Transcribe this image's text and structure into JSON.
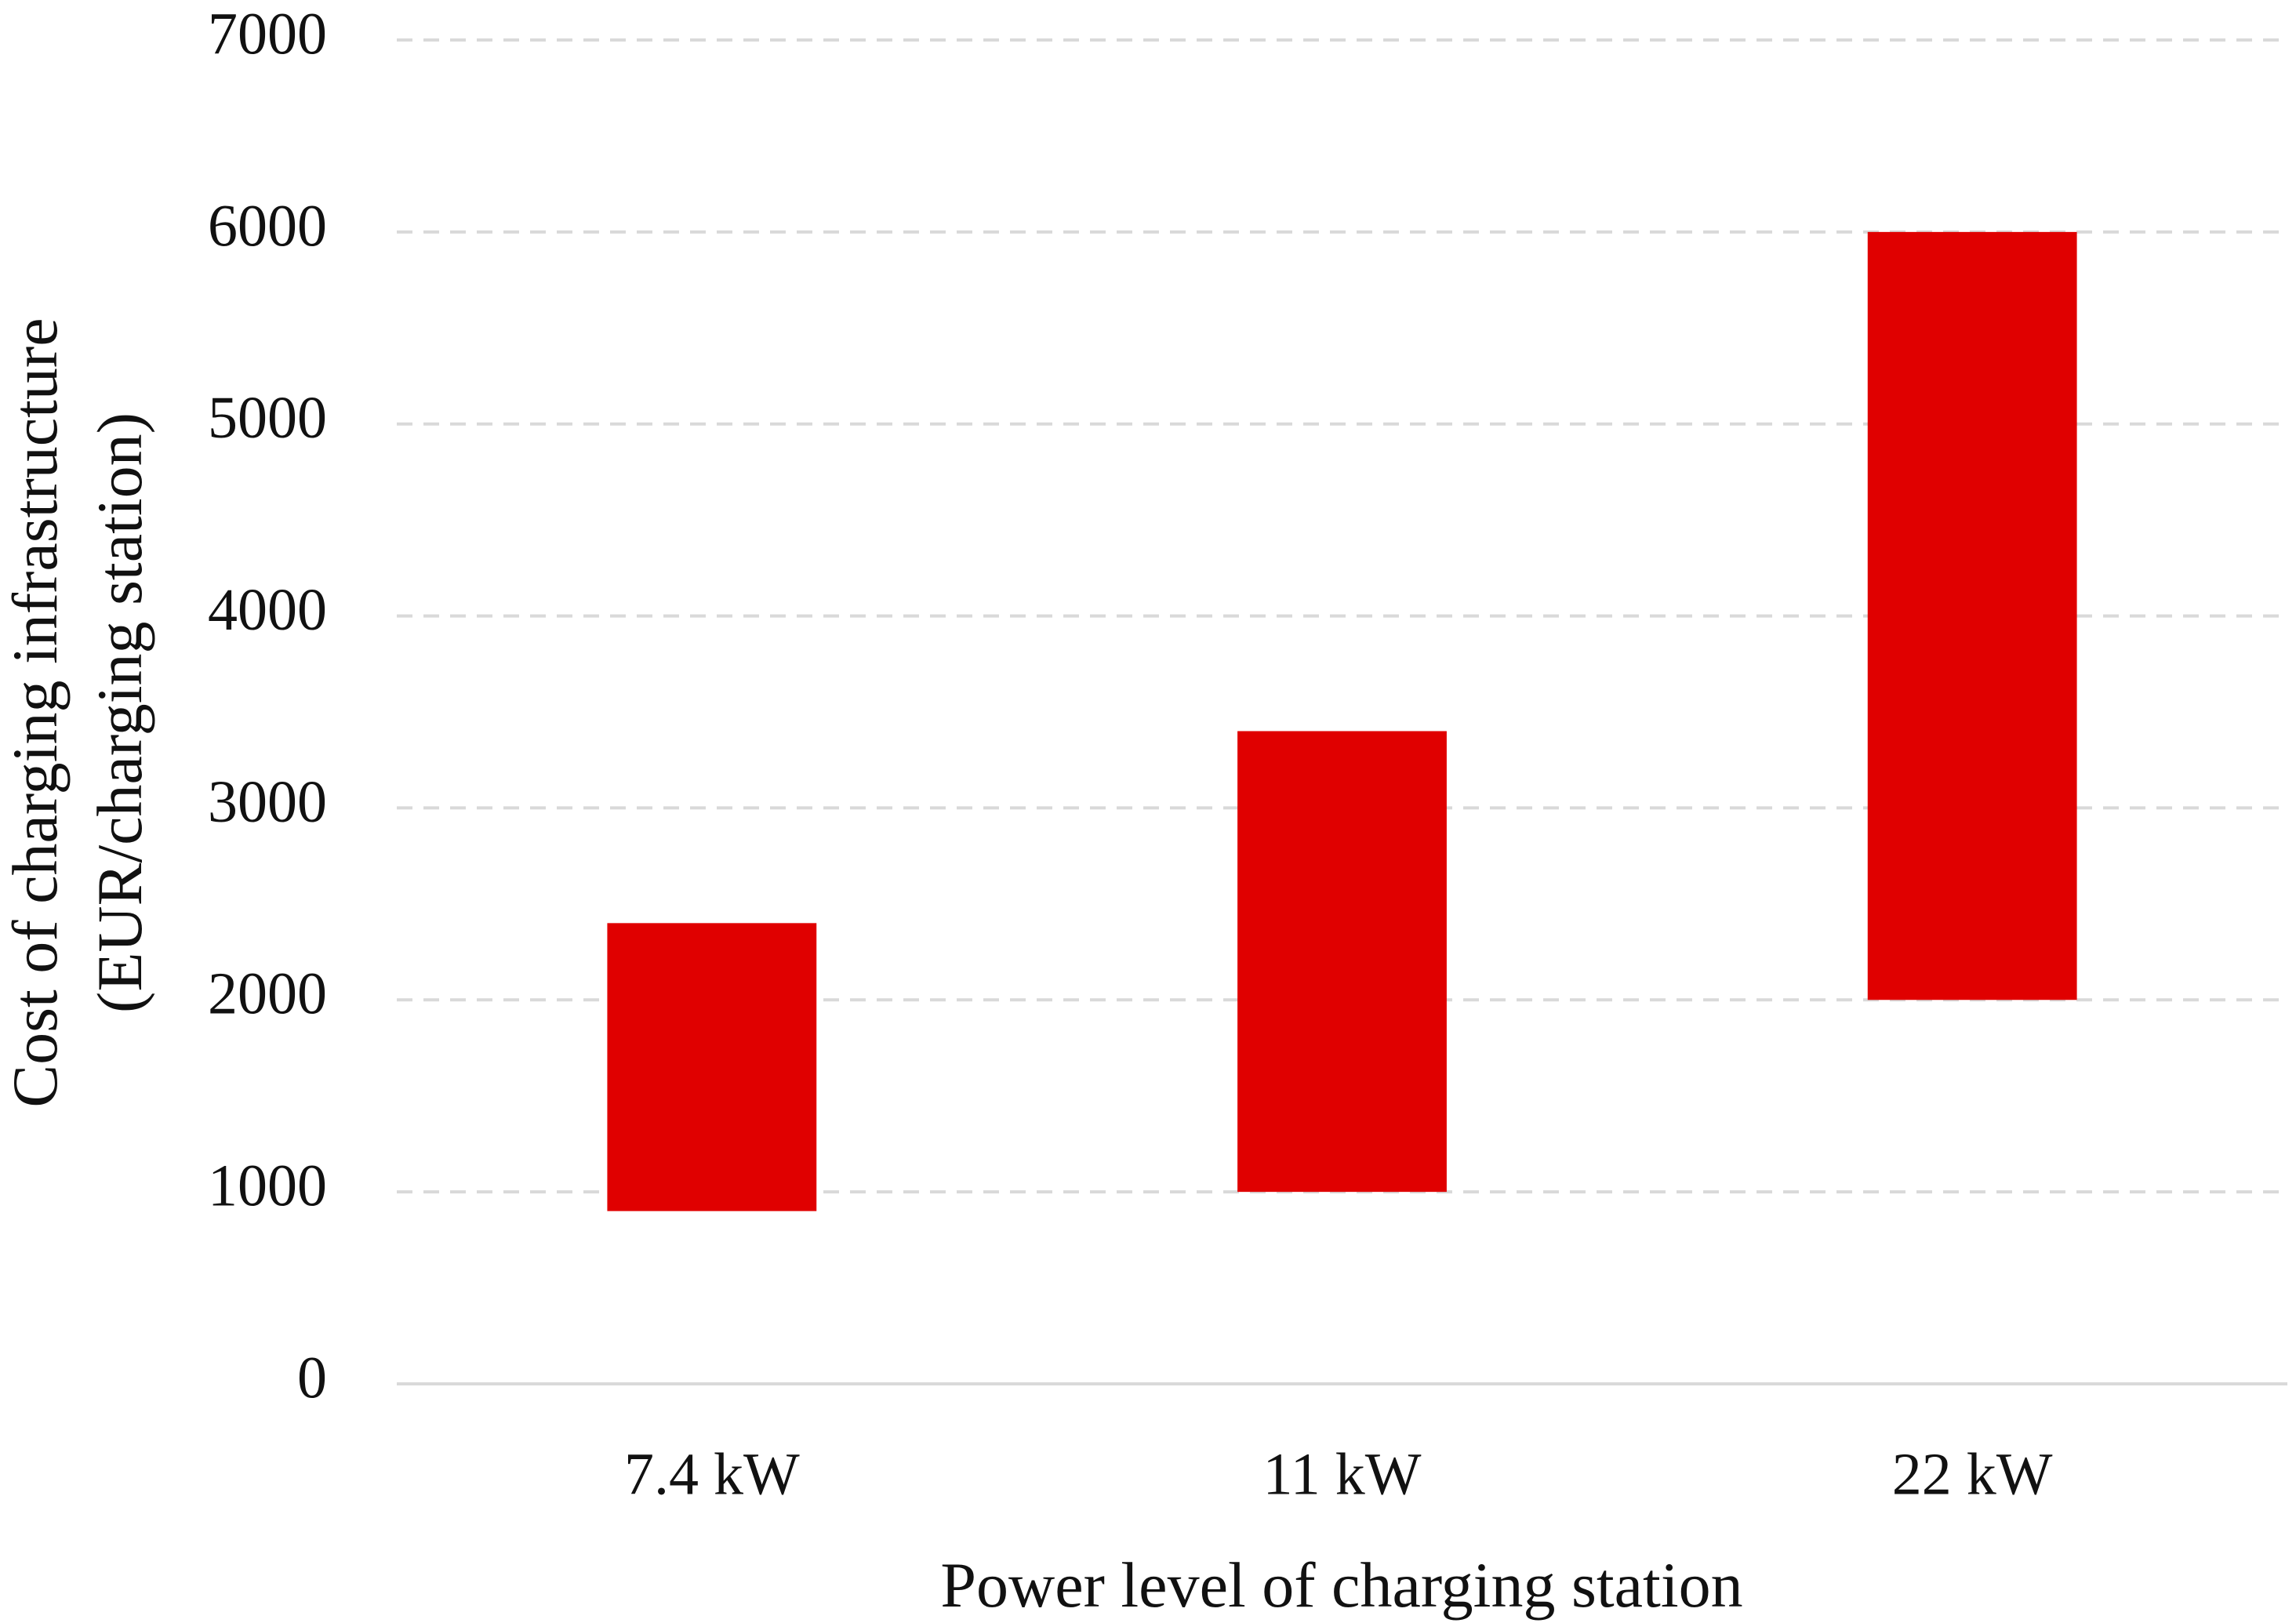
{
  "chart_data": {
    "type": "floating-bar",
    "x_label": "Power level of charging station",
    "y_label": [
      "Cost of charging infrastructure",
      "(EUR/charging station)"
    ],
    "categories": [
      "7.4 kW",
      "11 kW",
      "22 kW"
    ],
    "low": [
      900,
      1000,
      2000
    ],
    "high": [
      2400,
      3400,
      6000
    ],
    "color": "#e00000",
    "ylim": [
      0,
      7000
    ],
    "yticks": [
      0,
      1000,
      2000,
      3000,
      4000,
      5000,
      6000,
      7000
    ],
    "grid": true
  }
}
